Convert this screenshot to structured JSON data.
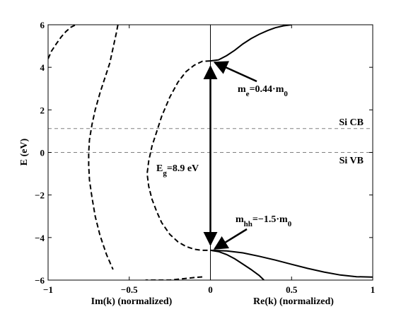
{
  "chart_data": {
    "type": "line",
    "title": "",
    "xlabel_left": "Im(k) (normalized)",
    "xlabel_right": "Re(k) (normalized)",
    "ylabel": "E (eV)",
    "xlim": [
      -1,
      1
    ],
    "ylim": [
      -6,
      6
    ],
    "xticks": [
      -1,
      -0.5,
      0,
      0.5,
      1
    ],
    "xtick_labels": [
      "−1",
      "−0.5",
      "0",
      "0.5",
      "1"
    ],
    "yticks": [
      -6,
      -4,
      -2,
      0,
      2,
      4,
      6
    ],
    "ytick_labels": [
      "−6",
      "−4",
      "−2",
      "0",
      "2",
      "4",
      "6"
    ],
    "grid": false,
    "reference_lines": [
      {
        "label": "Si CB",
        "y": 1.12
      },
      {
        "label": "Si VB",
        "y": 0
      }
    ],
    "gap": {
      "label_main": "E",
      "label_sub": "g",
      "label_rest": "=8.9 eV",
      "top": 4.3,
      "bottom": -4.6
    },
    "annotations": [
      {
        "main": "m",
        "sub": "e",
        "rest": "=0.44·m",
        "sub2": "0",
        "points_to": [
          0,
          4.3
        ]
      },
      {
        "main": "m",
        "sub": "hh",
        "rest": "=−1.5·m",
        "sub2": "0",
        "points_to": [
          0,
          -4.6
        ]
      }
    ],
    "series": [
      {
        "style": "solid",
        "x": [
          0,
          0.05,
          0.1,
          0.15,
          0.2,
          0.25,
          0.3,
          0.35,
          0.4,
          0.45,
          0.5
        ],
        "y": [
          4.3,
          4.35,
          4.55,
          4.8,
          5.1,
          5.35,
          5.55,
          5.72,
          5.86,
          5.95,
          6.0
        ]
      },
      {
        "style": "dashed",
        "x": [
          0,
          -0.05,
          -0.1,
          -0.15,
          -0.2,
          -0.25,
          -0.3,
          -0.33,
          -0.36,
          -0.38,
          -0.39,
          -0.38,
          -0.36,
          -0.33,
          -0.3,
          -0.25,
          -0.2,
          -0.15,
          -0.1,
          -0.05,
          0
        ],
        "y": [
          4.3,
          4.28,
          4.1,
          3.8,
          3.3,
          2.6,
          1.7,
          1.0,
          0.3,
          -0.4,
          -1.0,
          -1.6,
          -2.2,
          -2.8,
          -3.3,
          -3.85,
          -4.2,
          -4.42,
          -4.55,
          -4.6,
          -4.6
        ]
      },
      {
        "style": "solid",
        "x": [
          0,
          0.1,
          0.2,
          0.3,
          0.4,
          0.5,
          0.6,
          0.7,
          0.8,
          0.9,
          1.0
        ],
        "y": [
          -4.6,
          -4.63,
          -4.72,
          -4.88,
          -5.06,
          -5.26,
          -5.45,
          -5.62,
          -5.76,
          -5.84,
          -5.86
        ]
      },
      {
        "style": "solid",
        "x": [
          0,
          0.05,
          0.1,
          0.15,
          0.2,
          0.25,
          0.3,
          0.33
        ],
        "y": [
          -4.6,
          -4.66,
          -4.8,
          -5.0,
          -5.25,
          -5.5,
          -5.78,
          -6.0
        ]
      },
      {
        "style": "dashed",
        "x": [
          -0.05,
          -0.1,
          -0.15,
          -0.2,
          -0.25,
          -0.3,
          -0.35,
          -0.4
        ],
        "y": [
          -5.85,
          -5.88,
          -5.92,
          -5.96,
          -6.0,
          -6.0,
          -6.0,
          -6.0
        ]
      },
      {
        "style": "dashed",
        "x": [
          -0.57,
          -0.58,
          -0.6,
          -0.62,
          -0.65,
          -0.68,
          -0.71,
          -0.73,
          -0.745,
          -0.75,
          -0.75,
          -0.745,
          -0.73,
          -0.71,
          -0.68,
          -0.64,
          -0.6
        ],
        "y": [
          6.0,
          5.6,
          4.9,
          4.2,
          3.5,
          2.8,
          2.0,
          1.3,
          0.6,
          0.0,
          -0.6,
          -1.3,
          -2.1,
          -3.0,
          -3.9,
          -4.8,
          -5.5
        ]
      },
      {
        "style": "dashed",
        "x": [
          -1.0,
          -0.98,
          -0.95,
          -0.92,
          -0.89,
          -0.86,
          -0.83
        ],
        "y": [
          4.4,
          4.75,
          5.1,
          5.42,
          5.68,
          5.88,
          6.0
        ]
      }
    ]
  }
}
